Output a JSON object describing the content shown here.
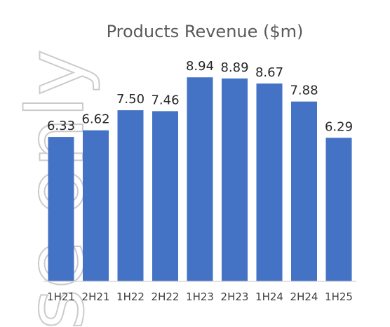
{
  "watermark": {
    "text": "se only"
  },
  "chart_data": {
    "type": "bar",
    "title": "Products Revenue ($m)",
    "xlabel": "",
    "ylabel": "",
    "categories": [
      "1H21",
      "2H21",
      "1H22",
      "2H22",
      "1H23",
      "2H23",
      "1H24",
      "2H24",
      "1H25"
    ],
    "values": [
      6.33,
      6.62,
      7.5,
      7.46,
      8.94,
      8.89,
      8.67,
      7.88,
      6.29
    ],
    "value_labels": [
      "6.33",
      "6.62",
      "7.50",
      "7.46",
      "8.94",
      "8.89",
      "8.67",
      "7.88",
      "6.29"
    ],
    "ylim": [
      0,
      9.5
    ],
    "grid": false,
    "legend": "none",
    "bar_color": "#4472C4",
    "axis_color": "#D9D9D9"
  }
}
